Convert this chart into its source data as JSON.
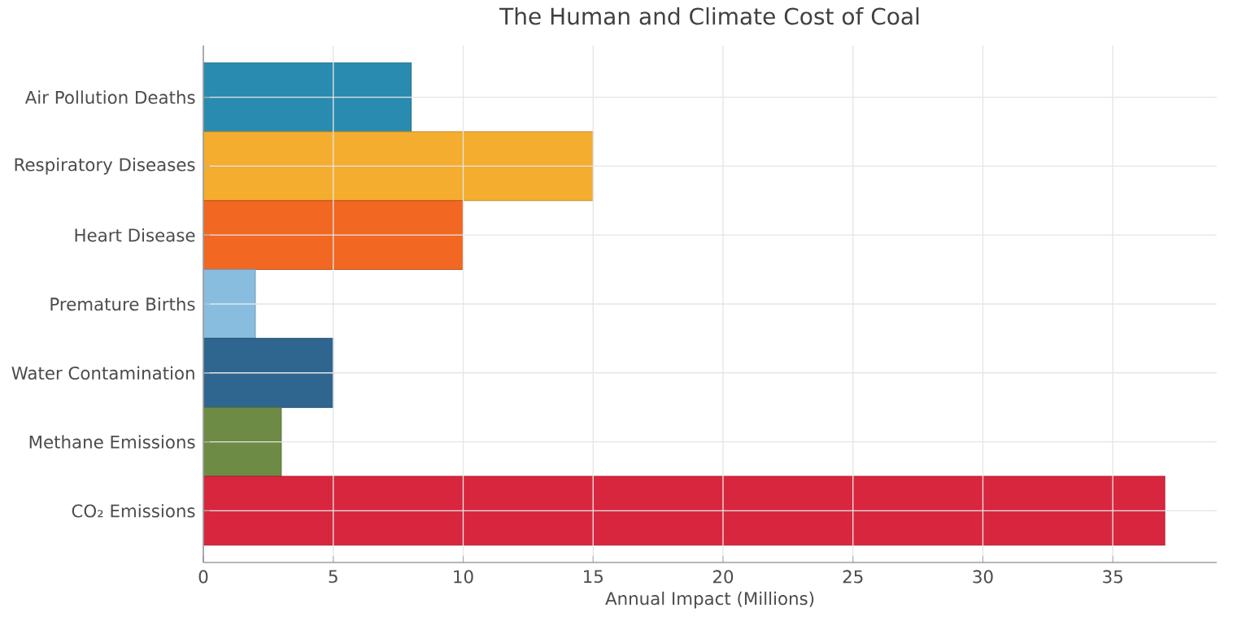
{
  "chart_data": {
    "type": "bar",
    "orientation": "horizontal",
    "title": "The Human and Climate Cost of Coal",
    "xlabel": "Annual Impact (Millions)",
    "categories": [
      "Air Pollution Deaths",
      "Respiratory Diseases",
      "Heart Disease",
      "Premature Births",
      "Water Contamination",
      "Methane Emissions",
      "CO₂ Emissions"
    ],
    "values": [
      8,
      15,
      10,
      2,
      5,
      3,
      37
    ],
    "colors": [
      "#2a8bb0",
      "#f5ad2f",
      "#f26722",
      "#88bde0",
      "#2f6690",
      "#6e8b45",
      "#d9263f"
    ],
    "xlim": [
      0,
      39
    ],
    "xticks": [
      0,
      5,
      10,
      15,
      20,
      25,
      30,
      35
    ],
    "grid": true
  }
}
